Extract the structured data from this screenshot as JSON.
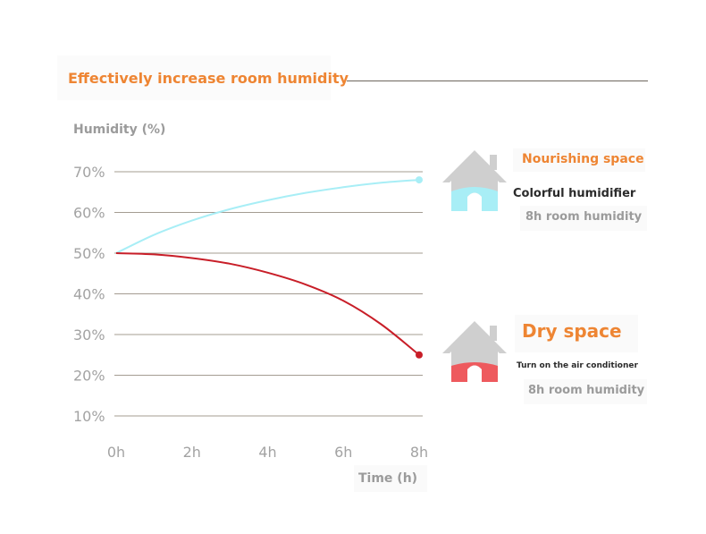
{
  "header": {
    "title": "Effectively increase room humidity"
  },
  "chart_data": {
    "type": "line",
    "ylabel": "Humidity (%)",
    "xlabel": "Time (h)",
    "x_ticks": [
      "0h",
      "2h",
      "4h",
      "6h",
      "8h"
    ],
    "y_ticks": [
      "70%",
      "60%",
      "50%",
      "40%",
      "30%",
      "20%",
      "10%"
    ],
    "xlim": [
      0,
      8
    ],
    "ylim": [
      10,
      70
    ],
    "grid": true,
    "series": [
      {
        "key": "nourishing",
        "color": "#a8eef6",
        "x": [
          0,
          1,
          2,
          3,
          4,
          5,
          6,
          7,
          8
        ],
        "y": [
          50,
          54.5,
          58,
          60.8,
          63,
          64.8,
          66.2,
          67.3,
          68
        ]
      },
      {
        "key": "dry",
        "color": "#c81e28",
        "x": [
          0,
          1,
          2,
          3,
          4,
          5,
          6,
          7,
          8
        ],
        "y": [
          50,
          49.7,
          48.8,
          47.4,
          45.2,
          42.3,
          38.3,
          32.5,
          25
        ]
      }
    ]
  },
  "legend": {
    "nourishing": {
      "name": "Nourishing space",
      "subtitle": "Colorful humidifier",
      "note": "8h room humidity",
      "color": "#ee8533",
      "fill_color": "#a8eef6",
      "icon": "house-icon"
    },
    "dry": {
      "name": "Dry space",
      "subtitle": "Turn on the air conditioner",
      "note": "8h room humidity",
      "color": "#ee8533",
      "fill_color": "#ee5a5e",
      "icon": "house-icon"
    }
  }
}
